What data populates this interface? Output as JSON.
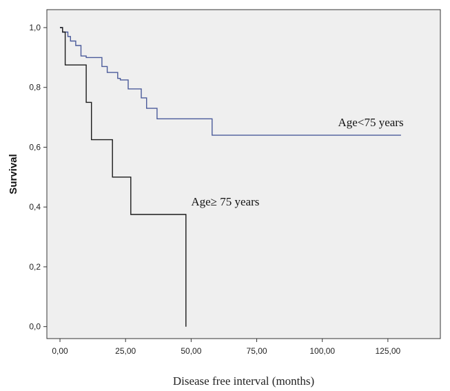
{
  "chart_data": {
    "type": "line",
    "title": "",
    "xlabel": "Disease free interval (months)",
    "ylabel": "Survival",
    "xlim": [
      -5,
      145
    ],
    "ylim": [
      -0.04,
      1.06
    ],
    "x_ticks": [
      0,
      25,
      50,
      75,
      100,
      125
    ],
    "x_tick_labels": [
      "0,00",
      "25,00",
      "50,00",
      "75,00",
      "100,00",
      "125,00"
    ],
    "y_ticks": [
      0,
      0.2,
      0.4,
      0.6,
      0.8,
      1.0
    ],
    "y_tick_labels": [
      "0,0",
      "0,2",
      "0,4",
      "0,6",
      "0,8",
      "1,0"
    ],
    "grid": false,
    "background_color": "#efefef",
    "series": [
      {
        "name": "Age<75 years",
        "step": true,
        "color": "#4a5a9a",
        "x": [
          0,
          1,
          3,
          4,
          6,
          8,
          10,
          14,
          16,
          18,
          22,
          23,
          26,
          31,
          33,
          35,
          37,
          40,
          45,
          50,
          55,
          58,
          60,
          130
        ],
        "y": [
          1.0,
          0.985,
          0.97,
          0.955,
          0.94,
          0.905,
          0.9,
          0.9,
          0.87,
          0.85,
          0.83,
          0.825,
          0.795,
          0.765,
          0.73,
          0.73,
          0.695,
          0.695,
          0.695,
          0.695,
          0.695,
          0.64,
          0.64,
          0.64
        ]
      },
      {
        "name": "Age≥ 75 years",
        "step": true,
        "color": "#1a1a1a",
        "x": [
          0,
          1,
          2,
          10,
          12,
          20,
          27,
          48,
          48
        ],
        "y": [
          1.0,
          0.985,
          0.875,
          0.75,
          0.625,
          0.5,
          0.375,
          0.375,
          0.0
        ]
      }
    ],
    "annotations": [
      {
        "text": "Age<75 years",
        "x": 106,
        "y": 0.67
      },
      {
        "text": "Age≥ 75 years",
        "x": 50,
        "y": 0.405
      }
    ]
  }
}
